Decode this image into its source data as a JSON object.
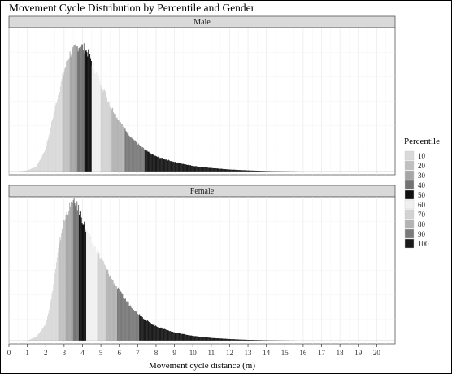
{
  "chart_data": {
    "type": "bar",
    "title": "Movement Cycle Distribution by Percentile and Gender",
    "xlabel": "Movement cycle distance (m)",
    "ylabel": "",
    "xlim": [
      0,
      21
    ],
    "x_ticks": [
      0,
      1,
      2,
      3,
      4,
      5,
      6,
      7,
      8,
      9,
      10,
      11,
      12,
      13,
      14,
      15,
      16,
      17,
      18,
      19,
      20
    ],
    "grid": true,
    "legend": {
      "title": "Percentile",
      "placement": "right",
      "entries": [
        {
          "label": "10",
          "color": "#d9d9d9"
        },
        {
          "label": "20",
          "color": "#c0c0c0"
        },
        {
          "label": "30",
          "color": "#a6a6a6"
        },
        {
          "label": "40",
          "color": "#737373"
        },
        {
          "label": "50",
          "color": "#111111"
        },
        {
          "label": "60",
          "color": "#f0f0f0"
        },
        {
          "label": "70",
          "color": "#d2d2d2"
        },
        {
          "label": "80",
          "color": "#b3b3b3"
        },
        {
          "label": "90",
          "color": "#7a7a7a"
        },
        {
          "label": "100",
          "color": "#1a1a1a"
        }
      ]
    },
    "panels": [
      {
        "label": "Male",
        "percentile_breaks": [
          2.9,
          3.3,
          3.7,
          4.1,
          4.5,
          5.0,
          5.6,
          6.3,
          7.4,
          16.0
        ],
        "x": [
          0.5,
          1.0,
          1.5,
          2.0,
          2.5,
          3.0,
          3.3,
          3.6,
          3.9,
          4.1,
          4.3,
          4.6,
          5.0,
          5.5,
          6.0,
          6.5,
          7.0,
          7.5,
          8.0,
          9.0,
          10.0,
          11.0,
          12.0,
          13.0,
          14.0,
          16.0
        ],
        "y": [
          0,
          0.01,
          0.04,
          0.18,
          0.5,
          0.8,
          0.93,
          0.98,
          1.0,
          0.98,
          0.94,
          0.84,
          0.7,
          0.53,
          0.4,
          0.3,
          0.22,
          0.16,
          0.12,
          0.075,
          0.045,
          0.028,
          0.016,
          0.009,
          0.004,
          0
        ]
      },
      {
        "label": "Female",
        "percentile_breaks": [
          2.7,
          3.1,
          3.5,
          3.8,
          4.2,
          4.8,
          5.3,
          5.9,
          7.1,
          15.7
        ],
        "x": [
          1.0,
          1.5,
          2.0,
          2.3,
          2.6,
          2.9,
          3.2,
          3.5,
          3.7,
          3.9,
          4.2,
          4.5,
          5.0,
          5.5,
          6.0,
          6.5,
          7.0,
          7.5,
          8.0,
          9.0,
          10.0,
          11.0,
          12.0,
          13.0,
          14.0,
          15.7
        ],
        "y": [
          0,
          0.03,
          0.12,
          0.3,
          0.58,
          0.82,
          0.95,
          1.0,
          0.98,
          0.92,
          0.8,
          0.72,
          0.6,
          0.47,
          0.36,
          0.27,
          0.2,
          0.145,
          0.105,
          0.06,
          0.035,
          0.02,
          0.012,
          0.006,
          0.003,
          0
        ]
      }
    ]
  }
}
